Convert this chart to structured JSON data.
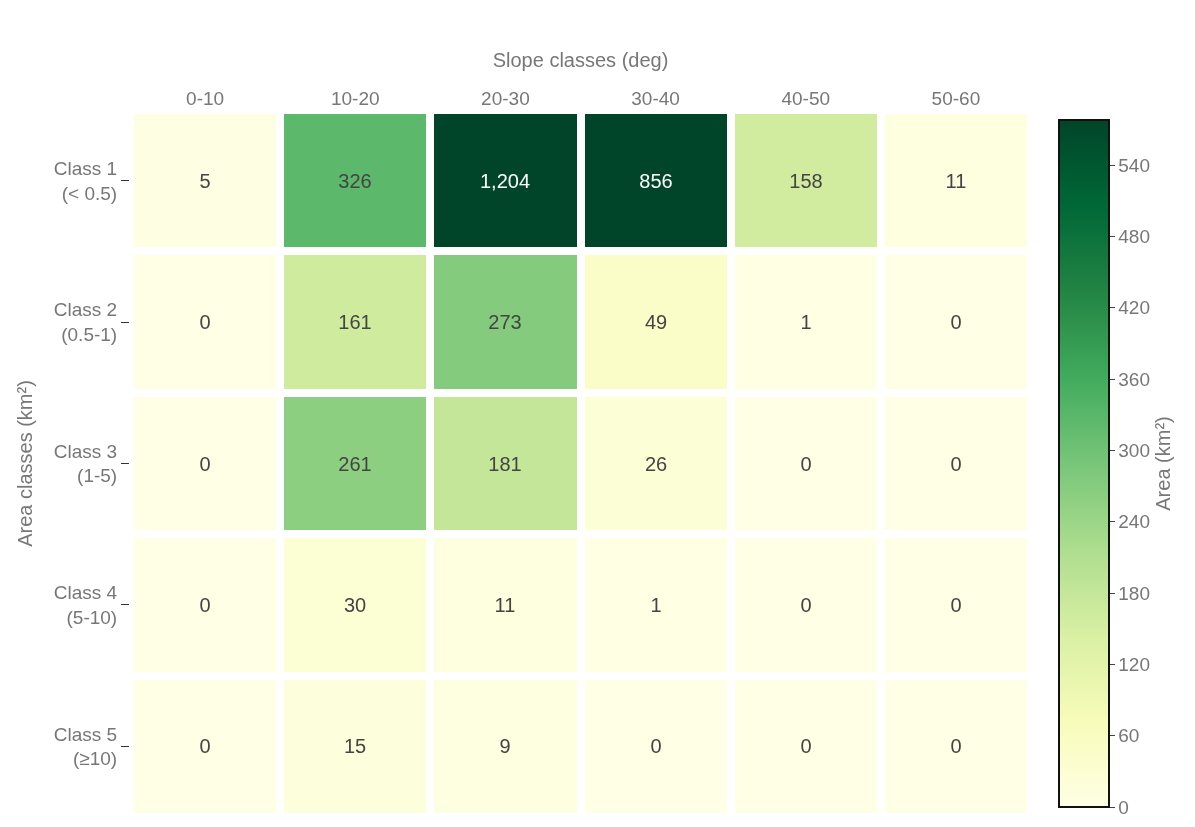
{
  "chart_data": {
    "type": "heatmap",
    "xlabel": "Slope classes (deg)",
    "ylabel": "Area classes (km²)",
    "clabel": "Area (km²)",
    "categories": [
      "0-10",
      "10-20",
      "20-30",
      "30-40",
      "40-50",
      "50-60"
    ],
    "y_categories": [
      "Class 1\n(< 0.5)",
      "Class 2\n(0.5-1)",
      "Class 3\n(1-5)",
      "Class 4\n(5-10)",
      "Class 5\n(≥10)"
    ],
    "cells": [
      [
        5,
        326,
        1204,
        856,
        158,
        11
      ],
      [
        0,
        161,
        273,
        49,
        1,
        0
      ],
      [
        0,
        261,
        181,
        26,
        0,
        0
      ],
      [
        0,
        30,
        11,
        1,
        0,
        0
      ],
      [
        0,
        15,
        9,
        0,
        0,
        0
      ]
    ],
    "cell_labels": [
      [
        "5",
        "326",
        "1,204",
        "856",
        "158",
        "11"
      ],
      [
        "0",
        "161",
        "273",
        "49",
        "1",
        "0"
      ],
      [
        "0",
        "261",
        "181",
        "26",
        "0",
        "0"
      ],
      [
        "0",
        "30",
        "11",
        "1",
        "0",
        "0"
      ],
      [
        "0",
        "15",
        "9",
        "0",
        "0",
        "0"
      ]
    ],
    "clim": [
      0,
      578
    ],
    "cticks": [
      0,
      60,
      120,
      180,
      240,
      300,
      360,
      420,
      480,
      540
    ]
  }
}
